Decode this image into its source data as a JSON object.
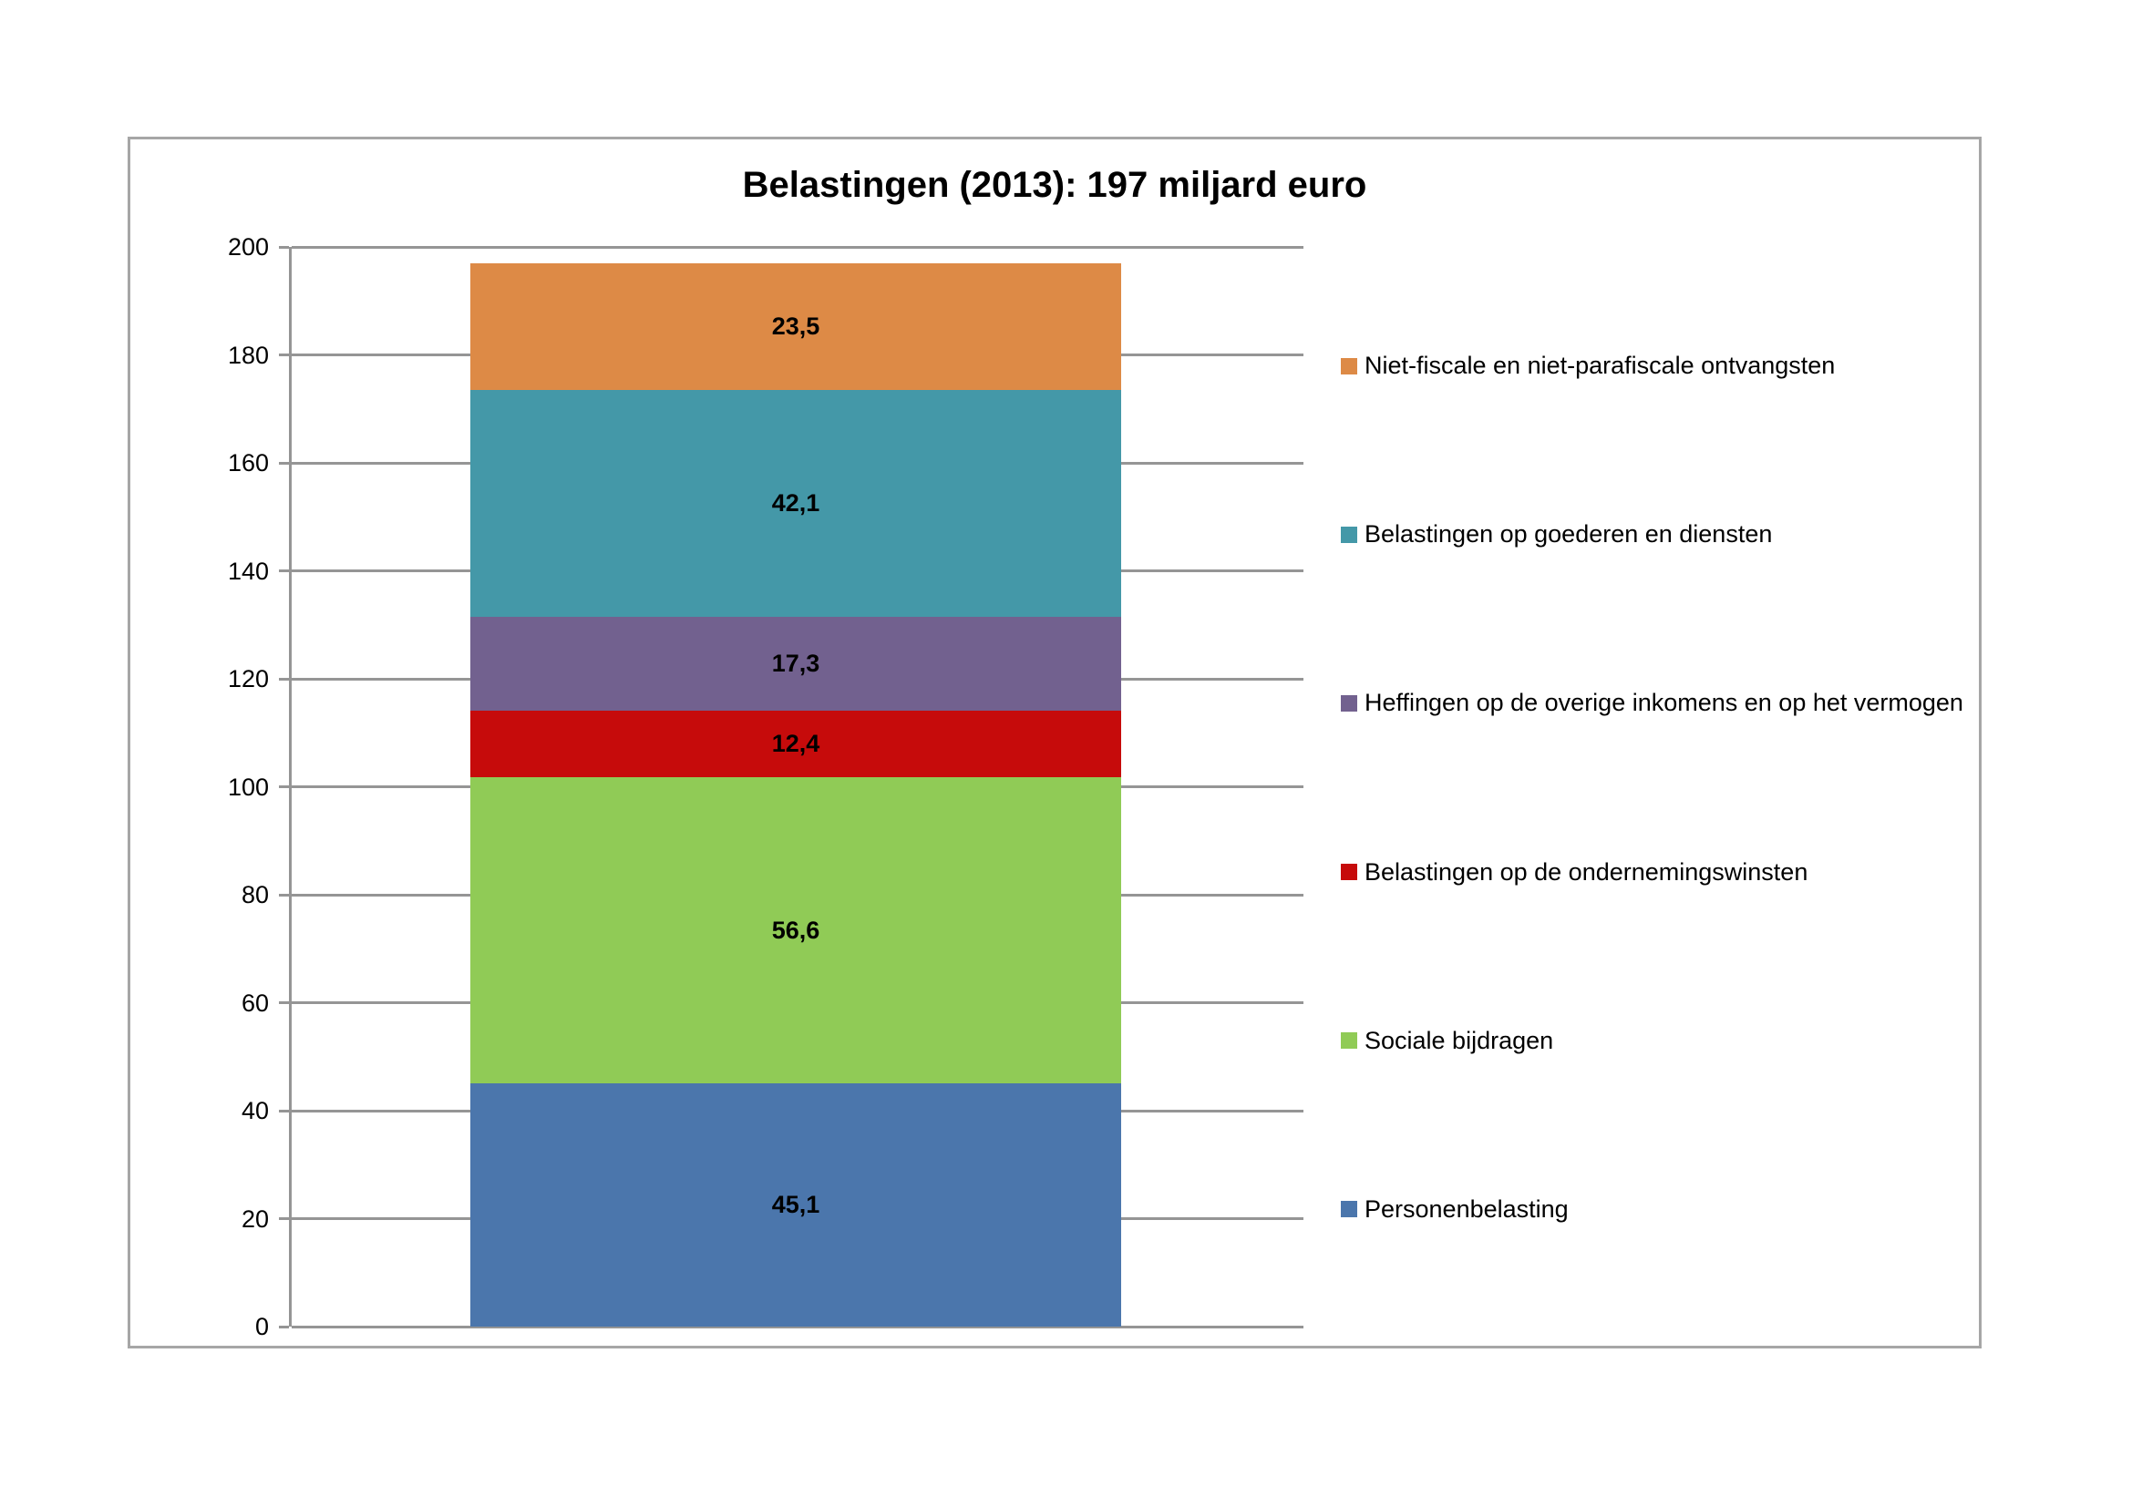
{
  "page": {
    "background_color": "#ffffff"
  },
  "colors": {
    "frame_border": "#a6a6a6",
    "gridline": "#959595",
    "axis_line": "#959595",
    "text": "#000000"
  },
  "chart_data": {
    "type": "bar",
    "subtype": "stacked-single-column",
    "title": "Belastingen (2013): 197 miljard euro",
    "categories": [
      "2013"
    ],
    "total": 197,
    "series": [
      {
        "name": "Personenbelasting",
        "value": 45.1,
        "label": "45,1",
        "color": "#4b76ac"
      },
      {
        "name": "Sociale bijdragen",
        "value": 56.6,
        "label": "56,6",
        "color": "#90cb56"
      },
      {
        "name": "Belastingen op de ondernemingswinsten",
        "value": 12.4,
        "label": "12,4",
        "color": "#c60b0b"
      },
      {
        "name": "Heffingen op de overige inkomens en op het vermogen",
        "value": 17.3,
        "label": "17,3",
        "color": "#72618f"
      },
      {
        "name": "Belastingen op goederen en diensten",
        "value": 42.1,
        "label": "42,1",
        "color": "#4498a8"
      },
      {
        "name": "Niet-fiscale en niet-parafiscale ontvangsten",
        "value": 23.5,
        "label": "23,5",
        "color": "#dd8a46"
      }
    ],
    "xlabel": "",
    "ylabel": "",
    "ylim": [
      0,
      200
    ],
    "yticks": [
      0,
      20,
      40,
      60,
      80,
      100,
      120,
      140,
      160,
      180,
      200
    ],
    "grid": true,
    "legend_position": "right",
    "legend_order": "top-segment-first"
  }
}
